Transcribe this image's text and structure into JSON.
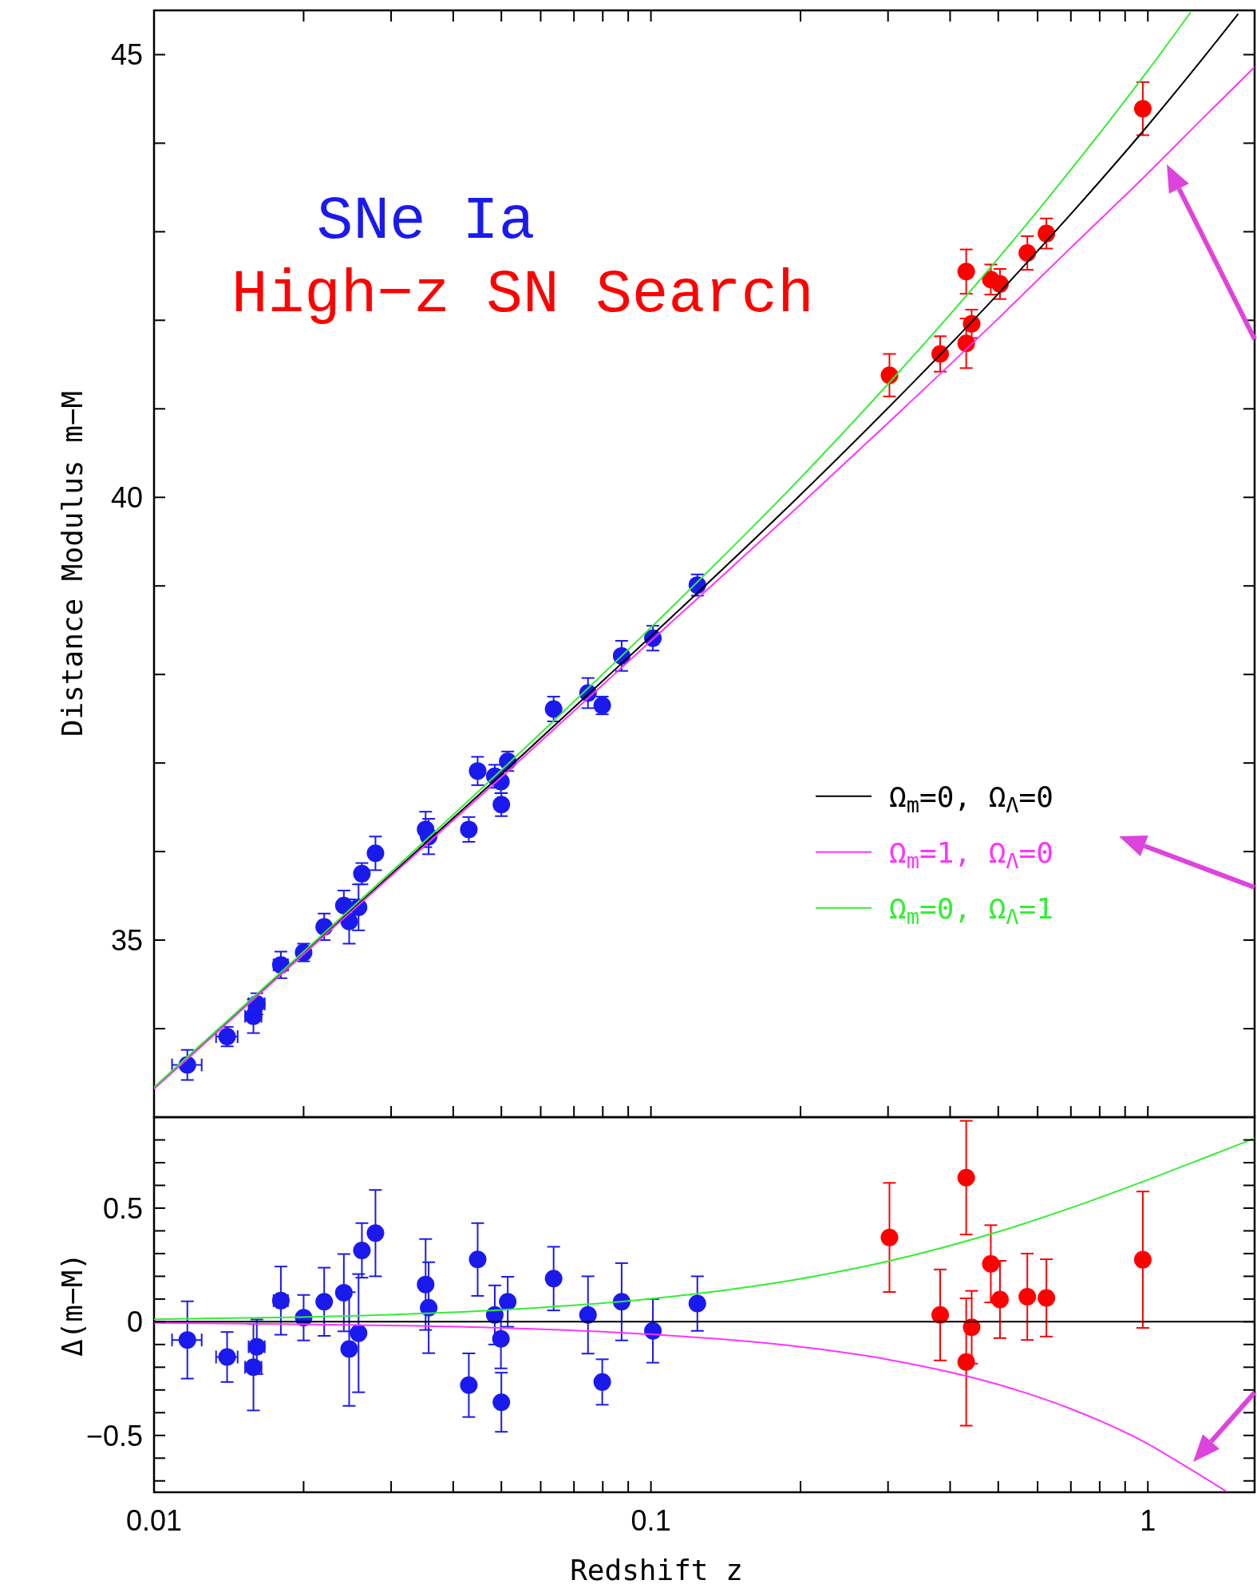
{
  "chart_data": [
    {
      "type": "scatter",
      "ylabel": "Distance Modulus m−M",
      "log": "x",
      "xlim": [
        0.01,
        1.64
      ],
      "ylim": [
        33,
        45.5
      ],
      "tick_labels": "y",
      "legend": "right",
      "marker": "circle",
      "grid": false,
      "xticks": [
        {
          "value": 0.01,
          "label": null
        },
        {
          "value": 0.02,
          "label": null
        },
        {
          "value": 0.03,
          "label": null
        },
        {
          "value": 0.04,
          "label": null
        },
        {
          "value": 0.05,
          "label": null
        },
        {
          "value": 0.06,
          "label": null
        },
        {
          "value": 0.07,
          "label": null
        },
        {
          "value": 0.08,
          "label": null
        },
        {
          "value": 0.09,
          "label": null
        },
        {
          "value": 0.1,
          "label": null
        },
        {
          "value": 0.2,
          "label": null
        },
        {
          "value": 0.3,
          "label": null
        },
        {
          "value": 0.4,
          "label": null
        },
        {
          "value": 0.5,
          "label": null
        },
        {
          "value": 0.6,
          "label": null
        },
        {
          "value": 0.7,
          "label": null
        },
        {
          "value": 0.8,
          "label": null
        },
        {
          "value": 0.9,
          "label": null
        },
        {
          "value": 1,
          "label": null
        }
      ],
      "yticks": [
        {
          "value": 34,
          "label": null
        },
        35,
        {
          "value": 36,
          "label": null
        },
        {
          "value": 37,
          "label": null
        },
        {
          "value": 38,
          "label": null
        },
        {
          "value": 39,
          "label": null
        },
        40,
        {
          "value": 41,
          "label": null
        },
        {
          "value": 42,
          "label": null
        },
        {
          "value": 43,
          "label": null
        },
        {
          "value": 44,
          "label": null
        },
        45
      ],
      "series": [
        {
          "type": "line",
          "marker": "none",
          "name": "Ω$_{m}$=0, Ω$_{Λ}$=0",
          "color": "#000000",
          "x": [
            0.01,
            0.02,
            0.05,
            0.1,
            0.2,
            0.3,
            0.5,
            0.7,
            1.0,
            1.3,
            1.52
          ],
          "values": [
            33.33,
            34.85,
            36.87,
            38.43,
            40.03,
            41.01,
            42.3,
            43.2,
            44.2,
            44.98,
            45.46
          ]
        },
        {
          "type": "line",
          "marker": "none",
          "name": "Ω$_{m}$=1, Ω$_{Λ}$=0",
          "color": "#ff33ff",
          "x": [
            0.01,
            0.02,
            0.05,
            0.1,
            0.2,
            0.3,
            0.5,
            0.7,
            1.0,
            1.3,
            1.64
          ],
          "values": [
            33.32,
            34.84,
            36.84,
            38.38,
            39.92,
            40.84,
            42.02,
            42.82,
            43.66,
            44.3,
            44.86
          ]
        },
        {
          "type": "line",
          "marker": "none",
          "name": "Ω$_{m}$=0, Ω$_{Λ}$=1",
          "color": "#33ee33",
          "x": [
            0.01,
            0.02,
            0.05,
            0.1,
            0.2,
            0.3,
            0.5,
            0.7,
            1.0,
            1.22
          ],
          "values": [
            33.34,
            34.87,
            36.92,
            38.53,
            40.22,
            41.28,
            42.7,
            43.7,
            44.82,
            45.48
          ]
        },
        {
          "name": "SNe Ia",
          "color": "#1a1aee",
          "x": [
            0.01167,
            0.01403,
            0.01585,
            0.0161,
            0.018,
            0.02,
            0.022,
            0.0241,
            0.0247,
            0.0258,
            0.0262,
            0.0279,
            0.0352,
            0.0357,
            0.043,
            0.0448,
            0.0485,
            0.0499,
            0.05,
            0.0515,
            0.0637,
            0.0747,
            0.0798,
            0.0873,
            0.1009,
            0.124
          ],
          "values": [
            33.59,
            33.91,
            34.14,
            34.28,
            34.72,
            34.86,
            35.15,
            35.39,
            35.21,
            35.37,
            35.75,
            35.98,
            36.25,
            36.17,
            36.25,
            36.91,
            36.85,
            36.79,
            36.53,
            37.02,
            37.61,
            37.79,
            37.65,
            38.21,
            38.41,
            39.01
          ],
          "errors": [
            0.17,
            0.11,
            0.19,
            0.12,
            0.15,
            0.1,
            0.15,
            0.17,
            0.25,
            0.26,
            0.12,
            0.19,
            0.2,
            0.2,
            0.14,
            0.16,
            0.13,
            0.13,
            0.13,
            0.11,
            0.14,
            0.17,
            0.1,
            0.17,
            0.14,
            0.12
          ],
          "xerrors": [
            0.0008,
            0.0007,
            0.0006,
            0.0006,
            0.0006,
            null,
            null,
            null,
            null,
            null,
            null,
            null,
            null,
            null,
            null,
            null,
            null,
            null,
            null,
            null,
            null,
            null,
            null,
            null,
            null,
            null
          ]
        },
        {
          "name": "High−z SN Search",
          "color": "#ff0000",
          "x": [
            0.302,
            0.382,
            0.431,
            0.431,
            0.442,
            0.483,
            0.504,
            0.572,
            0.625,
            0.977
          ],
          "values": [
            41.38,
            41.62,
            42.55,
            41.74,
            41.96,
            42.46,
            42.41,
            42.76,
            42.98,
            44.39
          ],
          "errors": [
            0.24,
            0.2,
            0.25,
            0.28,
            0.16,
            0.17,
            0.17,
            0.19,
            0.17,
            0.3
          ]
        }
      ]
    },
    {
      "type": "scatter",
      "xlabel": "Redshift z",
      "ylabel": "Δ(m−M)",
      "log": "x",
      "xlim": [
        0.01,
        1.64
      ],
      "ylim": [
        -0.75,
        0.9
      ],
      "marker": "circle",
      "grid": false,
      "xticks": [
        0.01,
        {
          "value": 0.02,
          "label": null
        },
        {
          "value": 0.03,
          "label": null
        },
        {
          "value": 0.04,
          "label": null
        },
        {
          "value": 0.05,
          "label": null
        },
        {
          "value": 0.06,
          "label": null
        },
        {
          "value": 0.07,
          "label": null
        },
        {
          "value": 0.08,
          "label": null
        },
        {
          "value": 0.09,
          "label": null
        },
        0.1,
        {
          "value": 0.2,
          "label": null
        },
        {
          "value": 0.3,
          "label": null
        },
        {
          "value": 0.4,
          "label": null
        },
        {
          "value": 0.5,
          "label": null
        },
        {
          "value": 0.6,
          "label": null
        },
        {
          "value": 0.7,
          "label": null
        },
        {
          "value": 0.8,
          "label": null
        },
        {
          "value": 0.9,
          "label": null
        },
        1
      ],
      "yticks": [
        {
          "value": -0.7,
          "label": null
        },
        {
          "value": -0.6,
          "label": null
        },
        {
          "value": -0.5,
          "label": "−0.5"
        },
        {
          "value": -0.4,
          "label": null
        },
        {
          "value": -0.3,
          "label": null
        },
        {
          "value": -0.2,
          "label": null
        },
        {
          "value": -0.1,
          "label": null
        },
        0,
        {
          "value": 0.1,
          "label": null
        },
        {
          "value": 0.2,
          "label": null
        },
        {
          "value": 0.3,
          "label": null
        },
        {
          "value": 0.4,
          "label": null
        },
        0.5,
        {
          "value": 0.6,
          "label": null
        },
        {
          "value": 0.7,
          "label": null
        },
        {
          "value": 0.8,
          "label": null
        }
      ],
      "series": [
        {
          "type": "line",
          "marker": "none",
          "color": "#000000",
          "x": [
            0.01,
            1.64
          ],
          "values": [
            0,
            0
          ]
        },
        {
          "type": "line",
          "marker": "none",
          "color": "#ff33ff",
          "x": [
            0.01,
            0.02,
            0.05,
            0.1,
            0.2,
            0.3,
            0.5,
            0.7,
            1.0,
            1.2,
            1.44
          ],
          "values": [
            -0.005,
            -0.011,
            -0.027,
            -0.055,
            -0.11,
            -0.166,
            -0.276,
            -0.383,
            -0.537,
            -0.64,
            -0.747
          ]
        },
        {
          "type": "line",
          "marker": "none",
          "color": "#33ee33",
          "x": [
            0.01,
            0.02,
            0.05,
            0.1,
            0.2,
            0.3,
            0.5,
            0.7,
            1.0,
            1.3,
            1.64
          ],
          "values": [
            0.011,
            0.021,
            0.052,
            0.101,
            0.189,
            0.266,
            0.396,
            0.501,
            0.625,
            0.721,
            0.807
          ]
        },
        {
          "color": "#1a1aee",
          "x": [
            0.01167,
            0.01403,
            0.01585,
            0.0161,
            0.018,
            0.02,
            0.022,
            0.0241,
            0.0247,
            0.0258,
            0.0262,
            0.0279,
            0.0352,
            0.0357,
            0.043,
            0.0448,
            0.0485,
            0.0499,
            0.05,
            0.0515,
            0.0637,
            0.0747,
            0.0798,
            0.0873,
            0.1009,
            0.124
          ],
          "values": [
            -0.08,
            -0.155,
            -0.2,
            -0.11,
            0.093,
            0.018,
            0.088,
            0.128,
            -0.12,
            -0.05,
            0.314,
            0.39,
            0.164,
            0.062,
            -0.279,
            0.274,
            0.03,
            -0.075,
            -0.354,
            0.088,
            0.19,
            0.03,
            -0.265,
            0.088,
            -0.04,
            0.08
          ],
          "errors": [
            0.17,
            0.11,
            0.19,
            0.12,
            0.15,
            0.1,
            0.15,
            0.17,
            0.25,
            0.26,
            0.12,
            0.19,
            0.2,
            0.2,
            0.14,
            0.16,
            0.13,
            0.13,
            0.13,
            0.11,
            0.14,
            0.17,
            0.1,
            0.17,
            0.14,
            0.12
          ],
          "xerrors": [
            0.0008,
            0.0007,
            0.0006,
            0.0006,
            0.0006,
            null,
            null,
            null,
            null,
            null,
            null,
            null,
            null,
            null,
            null,
            null,
            null,
            null,
            null,
            null,
            null,
            null,
            null,
            null,
            null,
            null
          ]
        },
        {
          "color": "#ff0000",
          "x": [
            0.302,
            0.382,
            0.431,
            0.431,
            0.442,
            0.483,
            0.504,
            0.572,
            0.625,
            0.977
          ],
          "values": [
            0.371,
            0.03,
            0.634,
            -0.177,
            -0.024,
            0.255,
            0.098,
            0.11,
            0.105,
            0.273
          ],
          "errors": [
            0.24,
            0.2,
            0.25,
            0.28,
            0.16,
            0.17,
            0.17,
            0.19,
            0.17,
            0.3
          ]
        }
      ]
    }
  ]
}
